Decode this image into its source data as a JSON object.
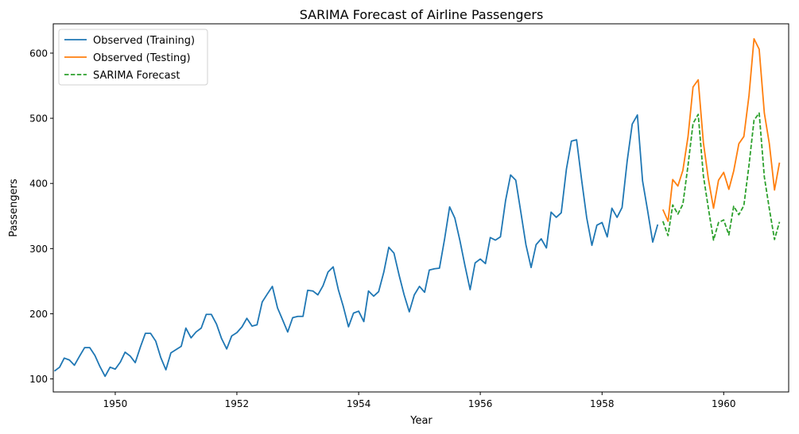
{
  "chart_data": {
    "type": "line",
    "title": "SARIMA Forecast of Airline Passengers",
    "xlabel": "Year",
    "ylabel": "Passengers",
    "xlim": [
      "1948-12-25",
      "1961-01-25"
    ],
    "ylim": [
      80,
      645
    ],
    "xticks": [
      "1950",
      "1952",
      "1954",
      "1956",
      "1958",
      "1960"
    ],
    "yticks": [
      100,
      200,
      300,
      400,
      500,
      600
    ],
    "grid": false,
    "legend": "upper-left",
    "series": [
      {
        "name": "Observed (Training)",
        "color": "#1f77b4",
        "dash": "solid",
        "start": "1949-01",
        "values": [
          112,
          118,
          132,
          129,
          121,
          135,
          148,
          148,
          136,
          119,
          104,
          118,
          115,
          126,
          141,
          135,
          125,
          149,
          170,
          170,
          158,
          133,
          114,
          140,
          145,
          150,
          178,
          163,
          172,
          178,
          199,
          199,
          184,
          162,
          146,
          166,
          171,
          180,
          193,
          181,
          183,
          218,
          230,
          242,
          209,
          191,
          172,
          194,
          196,
          196,
          236,
          235,
          229,
          243,
          264,
          272,
          237,
          211,
          180,
          201,
          204,
          188,
          235,
          227,
          234,
          264,
          302,
          293,
          259,
          229,
          203,
          229,
          242,
          233,
          267,
          269,
          270,
          315,
          364,
          347,
          312,
          274,
          237,
          278,
          284,
          277,
          317,
          313,
          318,
          374,
          413,
          405,
          355,
          306,
          271,
          306,
          315,
          301,
          356,
          348,
          355,
          422,
          465,
          467,
          404,
          347,
          305,
          336,
          340,
          318,
          362,
          348,
          363,
          435,
          491,
          505,
          404,
          359,
          310,
          337
        ]
      },
      {
        "name": "Observed (Testing)",
        "color": "#ff7f0e",
        "dash": "solid",
        "start": "1959-01",
        "values": [
          360,
          342,
          406,
          396,
          420,
          472,
          548,
          559,
          463,
          407,
          362,
          405,
          417,
          391,
          419,
          461,
          472,
          535,
          622,
          606,
          508,
          461,
          390,
          432
        ]
      },
      {
        "name": "SARIMA Forecast",
        "color": "#2ca02c",
        "dash": "dashed",
        "start": "1959-01",
        "values": [
          342,
          320,
          367,
          353,
          368,
          428,
          492,
          506,
          412,
          362,
          313,
          340,
          344,
          321,
          365,
          352,
          366,
          428,
          497,
          508,
          410,
          361,
          314,
          341
        ]
      }
    ]
  }
}
